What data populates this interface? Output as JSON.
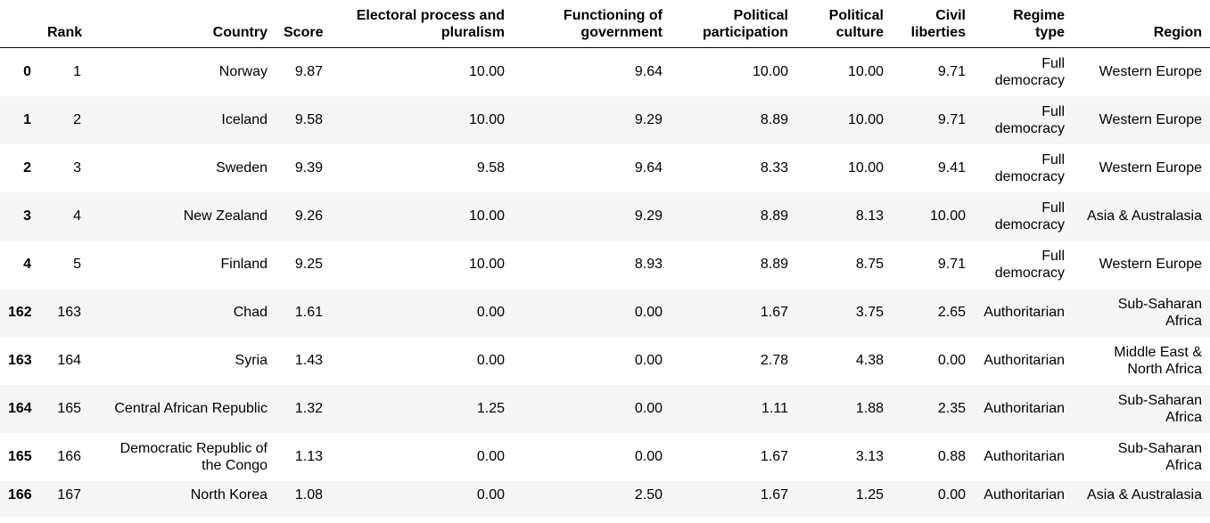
{
  "table": {
    "columns": [
      "",
      "Rank",
      "Country",
      "Score",
      "Electoral process and pluralism",
      "Functioning of government",
      "Political participation",
      "Political culture",
      "Civil liberties",
      "Regime type",
      "Region"
    ],
    "rows": [
      [
        "0",
        "1",
        "Norway",
        "9.87",
        "10.00",
        "9.64",
        "10.00",
        "10.00",
        "9.71",
        "Full democracy",
        "Western Europe"
      ],
      [
        "1",
        "2",
        "Iceland",
        "9.58",
        "10.00",
        "9.29",
        "8.89",
        "10.00",
        "9.71",
        "Full democracy",
        "Western Europe"
      ],
      [
        "2",
        "3",
        "Sweden",
        "9.39",
        "9.58",
        "9.64",
        "8.33",
        "10.00",
        "9.41",
        "Full democracy",
        "Western Europe"
      ],
      [
        "3",
        "4",
        "New Zealand",
        "9.26",
        "10.00",
        "9.29",
        "8.89",
        "8.13",
        "10.00",
        "Full democracy",
        "Asia & Australasia"
      ],
      [
        "4",
        "5",
        "Finland",
        "9.25",
        "10.00",
        "8.93",
        "8.89",
        "8.75",
        "9.71",
        "Full democracy",
        "Western Europe"
      ],
      [
        "162",
        "163",
        "Chad",
        "1.61",
        "0.00",
        "0.00",
        "1.67",
        "3.75",
        "2.65",
        "Authoritarian",
        "Sub-Saharan Africa"
      ],
      [
        "163",
        "164",
        "Syria",
        "1.43",
        "0.00",
        "0.00",
        "2.78",
        "4.38",
        "0.00",
        "Authoritarian",
        "Middle East & North Africa"
      ],
      [
        "164",
        "165",
        "Central African Republic",
        "1.32",
        "1.25",
        "0.00",
        "1.11",
        "1.88",
        "2.35",
        "Authoritarian",
        "Sub-Saharan Africa"
      ],
      [
        "165",
        "166",
        "Democratic Republic of the Congo",
        "1.13",
        "0.00",
        "0.00",
        "1.67",
        "3.13",
        "0.88",
        "Authoritarian",
        "Sub-Saharan Africa"
      ],
      [
        "166",
        "167",
        "North Korea",
        "1.08",
        "0.00",
        "2.50",
        "1.67",
        "1.25",
        "0.00",
        "Authoritarian",
        "Asia & Australasia"
      ]
    ]
  }
}
